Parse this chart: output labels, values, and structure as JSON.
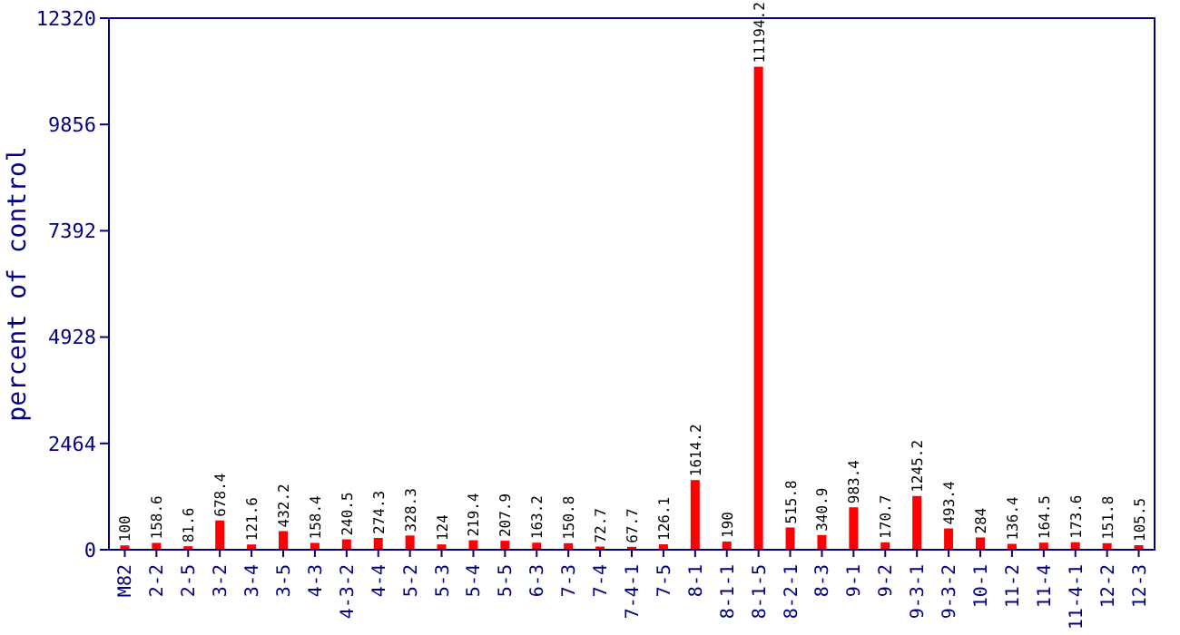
{
  "chart_data": {
    "type": "bar",
    "ylabel": "percent of control",
    "categories": [
      "M82",
      "2-2",
      "2-5",
      "3-2",
      "3-4",
      "3-5",
      "4-3",
      "4-3-2",
      "4-4",
      "5-2",
      "5-3",
      "5-4",
      "5-5",
      "6-3",
      "7-3",
      "7-4",
      "7-4-1",
      "7-5",
      "8-1",
      "8-1-1",
      "8-1-5",
      "8-2-1",
      "8-3",
      "9-1",
      "9-2",
      "9-3-1",
      "9-3-2",
      "10-1",
      "11-2",
      "11-4",
      "11-4-1",
      "12-2",
      "12-3"
    ],
    "values": [
      100,
      158.6,
      81.6,
      678.4,
      121.6,
      432.2,
      158.4,
      240.5,
      274.3,
      328.3,
      124,
      219.4,
      207.9,
      163.2,
      150.8,
      72.7,
      67.7,
      126.1,
      1614.2,
      190,
      11194.2,
      515.8,
      340.9,
      983.4,
      170.7,
      1245.2,
      493.4,
      284,
      136.4,
      164.5,
      173.6,
      151.8,
      105.5
    ],
    "color": "#ff0000",
    "ylim": [
      0,
      12320
    ],
    "yticks": [
      0,
      2464,
      4928,
      7392,
      9856,
      12320
    ],
    "data_labels": true
  }
}
